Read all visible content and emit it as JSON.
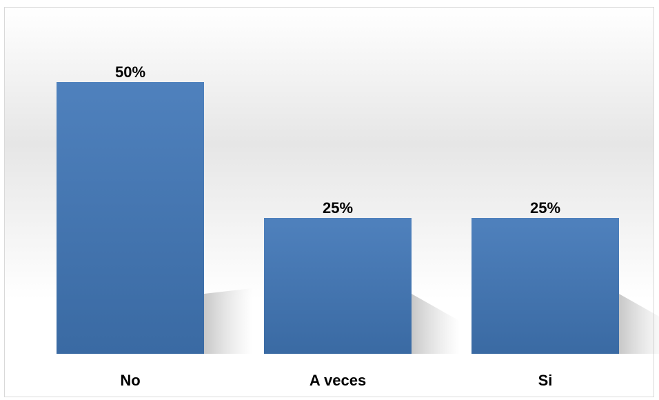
{
  "chart_data": {
    "type": "bar",
    "categories": [
      "No",
      "A veces",
      "Si"
    ],
    "values": [
      50,
      25,
      25
    ],
    "data_labels": [
      "50%",
      "25%",
      "25%"
    ],
    "title": "",
    "xlabel": "",
    "ylabel": "",
    "ylim": [
      0,
      50
    ],
    "grid": false,
    "legend": "none",
    "colors": {
      "bar_top": "#4f81bd",
      "bar_bottom": "#3a6aa3",
      "label_text": "#000000",
      "background_mid": "#dcdcdc"
    }
  }
}
